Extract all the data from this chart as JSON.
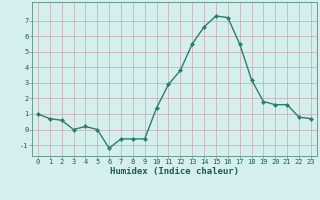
{
  "x": [
    0,
    1,
    2,
    3,
    4,
    5,
    6,
    7,
    8,
    9,
    10,
    11,
    12,
    13,
    14,
    15,
    16,
    17,
    18,
    19,
    20,
    21,
    22,
    23
  ],
  "y": [
    1.0,
    0.7,
    0.6,
    0.0,
    0.2,
    0.0,
    -1.2,
    -0.6,
    -0.6,
    -0.6,
    1.4,
    2.9,
    3.8,
    5.5,
    6.6,
    7.3,
    7.2,
    5.5,
    3.2,
    1.8,
    1.6,
    1.6,
    0.8,
    0.7
  ],
  "line_color": "#2d7d6e",
  "marker": "D",
  "marker_size": 2,
  "bg_color": "#d5efee",
  "grid_color": "#c8a8a8",
  "xlabel": "Humidex (Indice chaleur)",
  "xlim": [
    -0.5,
    23.5
  ],
  "ylim": [
    -1.7,
    8.2
  ],
  "yticks": [
    -1,
    0,
    1,
    2,
    3,
    4,
    5,
    6,
    7
  ],
  "xticks": [
    0,
    1,
    2,
    3,
    4,
    5,
    6,
    7,
    8,
    9,
    10,
    11,
    12,
    13,
    14,
    15,
    16,
    17,
    18,
    19,
    20,
    21,
    22,
    23
  ],
  "xlabel_color": "#1a5c52",
  "tick_color": "#1a5c52",
  "spine_color": "#6a9a90",
  "tick_fontsize": 5.0,
  "xlabel_fontsize": 6.5
}
